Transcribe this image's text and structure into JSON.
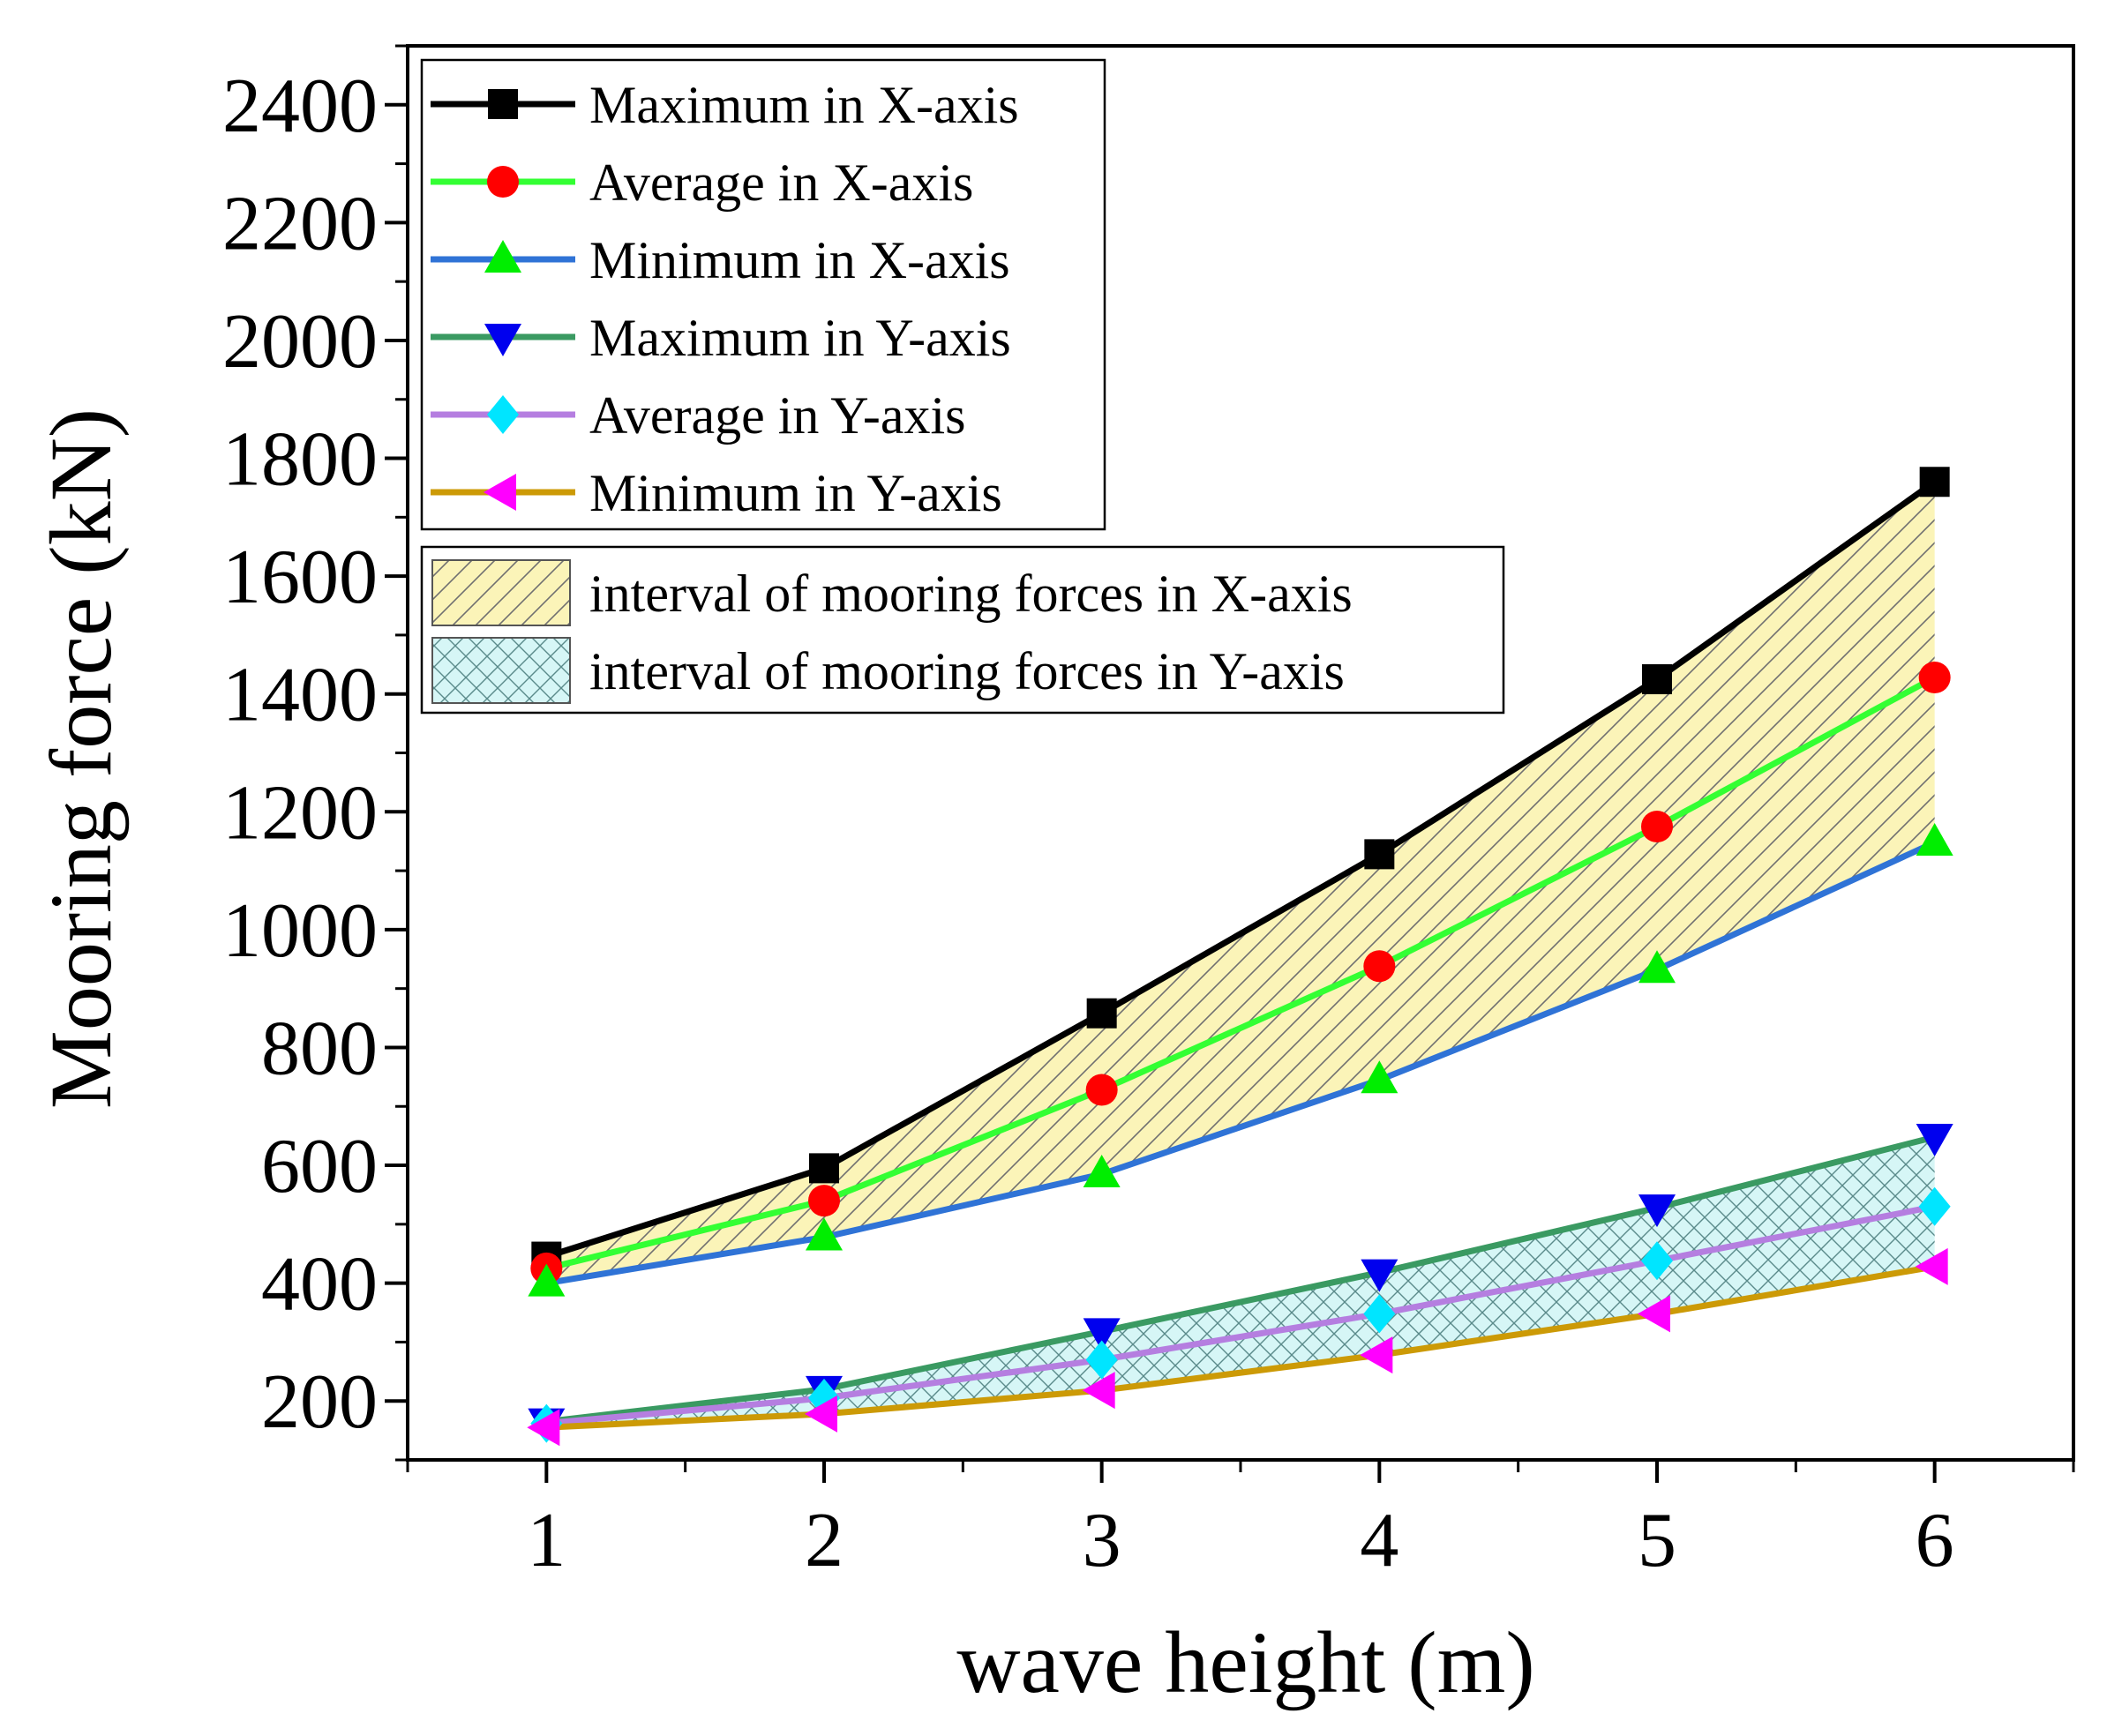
{
  "chart_data": {
    "type": "line",
    "title": "",
    "xlabel": "wave height (m)",
    "ylabel": "Mooring force (kN)",
    "xlim": [
      0.5,
      6.5
    ],
    "ylim": [
      100,
      2500
    ],
    "x": [
      1,
      2,
      3,
      4,
      5,
      6
    ],
    "x_ticks": [
      "1",
      "2",
      "3",
      "4",
      "5",
      "6"
    ],
    "y_ticks": [
      "200",
      "400",
      "600",
      "800",
      "1000",
      "1200",
      "1400",
      "1600",
      "1800",
      "2000",
      "2200",
      "2400"
    ],
    "series": [
      {
        "name": "Maximum in X-axis",
        "values": [
          445,
          595,
          858,
          1128,
          1425,
          1760
        ],
        "color": "#000000",
        "marker": "square",
        "marker_color": "#000000"
      },
      {
        "name": "Average in X-axis",
        "values": [
          425,
          540,
          728,
          938,
          1175,
          1428
        ],
        "color": "#33ff33",
        "marker": "circle",
        "marker_color": "#ff0000"
      },
      {
        "name": "Minimum in X-axis",
        "values": [
          400,
          478,
          585,
          745,
          932,
          1148
        ],
        "color": "#2f73d6",
        "marker": "triangle-up",
        "marker_color": "#00ee00"
      },
      {
        "name": "Maximum in Y-axis",
        "values": [
          165,
          220,
          318,
          418,
          528,
          648
        ],
        "color": "#3a9a62",
        "marker": "triangle-down",
        "marker_color": "#0000ee"
      },
      {
        "name": "Average in Y-axis",
        "values": [
          162,
          205,
          270,
          348,
          438,
          530
        ],
        "color": "#b57ee0",
        "marker": "diamond",
        "marker_color": "#00e5ff"
      },
      {
        "name": "Minimum in Y-axis",
        "values": [
          155,
          178,
          218,
          278,
          348,
          428
        ],
        "color": "#cc9a06",
        "marker": "triangle-left",
        "marker_color": "#ff00ff"
      }
    ],
    "bands": [
      {
        "name": "interval of mooring forces in X-axis",
        "upper_series": "Maximum in X-axis",
        "lower_series": "Minimum in X-axis",
        "fill": "#fbf4b8",
        "hatch": "diagonal",
        "hatch_color": "#707070"
      },
      {
        "name": "interval of mooring forces in Y-axis",
        "upper_series": "Maximum in Y-axis",
        "lower_series": "Minimum in Y-axis",
        "fill": "#d6f6f6",
        "hatch": "crosshatch",
        "hatch_color": "#5a8a8a"
      }
    ],
    "legend_position": "top-left",
    "grid": false
  }
}
